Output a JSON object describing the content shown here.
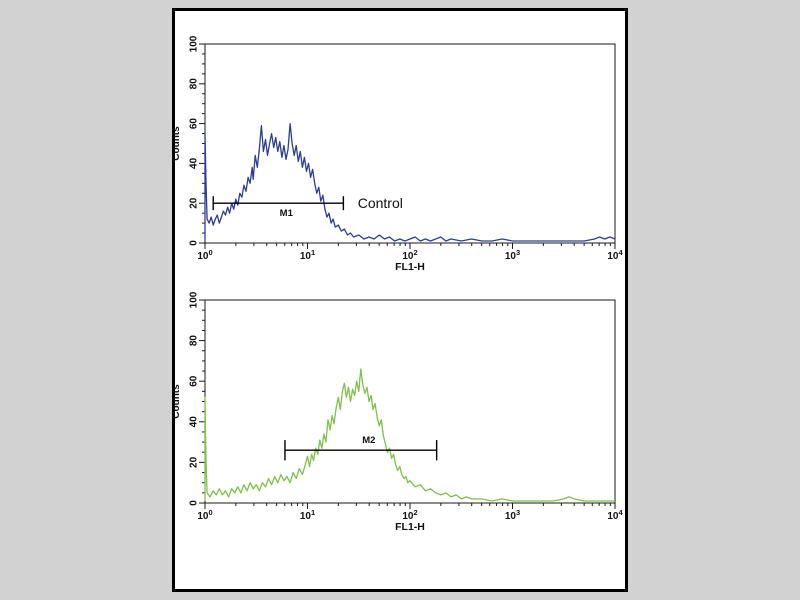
{
  "page": {
    "background_color": "#d2d2d2",
    "figure_background": "#ffffff",
    "figure_border_color": "#000000",
    "frame_color": "#1a1a1a",
    "text_color": "#111111"
  },
  "chart_data": [
    {
      "type": "line",
      "panel": "top",
      "description": "flow-cytometry-histogram-control",
      "xlabel": "FL1-H",
      "ylabel": "Counts",
      "x_scale": "log10",
      "x_range_exponents": [
        0,
        4
      ],
      "x_major_tick_exponents": [
        0,
        1,
        2,
        3,
        4
      ],
      "ylim": [
        0,
        100
      ],
      "y_major_ticks": [
        0,
        20,
        40,
        60,
        80,
        100
      ],
      "y_minor_step": 5,
      "grid": "off",
      "color": "#2b3e94",
      "marker": {
        "label": "M1",
        "log_from": 0.08,
        "log_to": 1.35,
        "count": 20,
        "cap_half_counts": 3.5,
        "label_side": "below"
      },
      "annotation": {
        "text": "Control",
        "log_x": 1.49,
        "count": 20
      },
      "points": [
        [
          0.0,
          2
        ],
        [
          0.0,
          55
        ],
        [
          0.01,
          30
        ],
        [
          0.02,
          12
        ],
        [
          0.04,
          10
        ],
        [
          0.06,
          13
        ],
        [
          0.08,
          9
        ],
        [
          0.1,
          12
        ],
        [
          0.12,
          14
        ],
        [
          0.14,
          10
        ],
        [
          0.16,
          13
        ],
        [
          0.18,
          16
        ],
        [
          0.2,
          14
        ],
        [
          0.22,
          18
        ],
        [
          0.24,
          15
        ],
        [
          0.26,
          20
        ],
        [
          0.28,
          17
        ],
        [
          0.3,
          22
        ],
        [
          0.32,
          19
        ],
        [
          0.34,
          25
        ],
        [
          0.36,
          23
        ],
        [
          0.38,
          29
        ],
        [
          0.4,
          26
        ],
        [
          0.42,
          33
        ],
        [
          0.44,
          30
        ],
        [
          0.46,
          38
        ],
        [
          0.47,
          32
        ],
        [
          0.49,
          44
        ],
        [
          0.51,
          38
        ],
        [
          0.53,
          47
        ],
        [
          0.55,
          59
        ],
        [
          0.57,
          46
        ],
        [
          0.59,
          52
        ],
        [
          0.61,
          44
        ],
        [
          0.63,
          50
        ],
        [
          0.65,
          55
        ],
        [
          0.67,
          48
        ],
        [
          0.69,
          53
        ],
        [
          0.71,
          46
        ],
        [
          0.73,
          51
        ],
        [
          0.75,
          43
        ],
        [
          0.77,
          49
        ],
        [
          0.79,
          42
        ],
        [
          0.81,
          47
        ],
        [
          0.83,
          60
        ],
        [
          0.85,
          50
        ],
        [
          0.87,
          44
        ],
        [
          0.89,
          49
        ],
        [
          0.91,
          41
        ],
        [
          0.93,
          46
        ],
        [
          0.95,
          38
        ],
        [
          0.97,
          43
        ],
        [
          0.99,
          36
        ],
        [
          1.01,
          40
        ],
        [
          1.03,
          33
        ],
        [
          1.05,
          37
        ],
        [
          1.07,
          30
        ],
        [
          1.09,
          25
        ],
        [
          1.11,
          28
        ],
        [
          1.13,
          21
        ],
        [
          1.15,
          24
        ],
        [
          1.17,
          17
        ],
        [
          1.19,
          13
        ],
        [
          1.21,
          15
        ],
        [
          1.23,
          10
        ],
        [
          1.25,
          12
        ],
        [
          1.27,
          8
        ],
        [
          1.3,
          9
        ],
        [
          1.33,
          6
        ],
        [
          1.36,
          7
        ],
        [
          1.39,
          4
        ],
        [
          1.42,
          5
        ],
        [
          1.45,
          3
        ],
        [
          1.5,
          4
        ],
        [
          1.55,
          2
        ],
        [
          1.6,
          3
        ],
        [
          1.65,
          2
        ],
        [
          1.7,
          4
        ],
        [
          1.75,
          2
        ],
        [
          1.8,
          3
        ],
        [
          1.85,
          1
        ],
        [
          1.9,
          2
        ],
        [
          1.95,
          1
        ],
        [
          2.0,
          2
        ],
        [
          2.05,
          3
        ],
        [
          2.1,
          1
        ],
        [
          2.15,
          2
        ],
        [
          2.2,
          1
        ],
        [
          2.25,
          2
        ],
        [
          2.3,
          3
        ],
        [
          2.35,
          1
        ],
        [
          2.4,
          2
        ],
        [
          2.5,
          1
        ],
        [
          2.6,
          2
        ],
        [
          2.7,
          1
        ],
        [
          2.8,
          1
        ],
        [
          2.9,
          2
        ],
        [
          3.0,
          1
        ],
        [
          3.1,
          1
        ],
        [
          3.2,
          1
        ],
        [
          3.3,
          1
        ],
        [
          3.4,
          1
        ],
        [
          3.5,
          1
        ],
        [
          3.6,
          1
        ],
        [
          3.7,
          1
        ],
        [
          3.8,
          2
        ],
        [
          3.85,
          3
        ],
        [
          3.9,
          2
        ],
        [
          3.95,
          3
        ],
        [
          4.0,
          2
        ]
      ]
    },
    {
      "type": "line",
      "panel": "bottom",
      "description": "flow-cytometry-histogram-antibody",
      "xlabel": "FL1-H",
      "ylabel": "Counts",
      "x_scale": "log10",
      "x_range_exponents": [
        0,
        4
      ],
      "x_major_tick_exponents": [
        0,
        1,
        2,
        3,
        4
      ],
      "ylim": [
        0,
        100
      ],
      "y_major_ticks": [
        0,
        20,
        40,
        60,
        80,
        100
      ],
      "y_minor_step": 5,
      "grid": "off",
      "color": "#7cc24a",
      "marker": {
        "label": "M2",
        "log_from": 0.78,
        "log_to": 2.26,
        "count": 26,
        "cap_half_counts": 5,
        "label_side": "above"
      },
      "annotation": null,
      "points": [
        [
          0.0,
          1
        ],
        [
          0.0,
          52
        ],
        [
          0.01,
          20
        ],
        [
          0.02,
          5
        ],
        [
          0.05,
          3
        ],
        [
          0.08,
          6
        ],
        [
          0.11,
          4
        ],
        [
          0.14,
          7
        ],
        [
          0.17,
          4
        ],
        [
          0.2,
          6
        ],
        [
          0.23,
          3
        ],
        [
          0.26,
          7
        ],
        [
          0.29,
          5
        ],
        [
          0.32,
          8
        ],
        [
          0.35,
          5
        ],
        [
          0.38,
          9
        ],
        [
          0.41,
          6
        ],
        [
          0.44,
          10
        ],
        [
          0.47,
          7
        ],
        [
          0.5,
          9
        ],
        [
          0.53,
          6
        ],
        [
          0.56,
          10
        ],
        [
          0.59,
          8
        ],
        [
          0.62,
          12
        ],
        [
          0.65,
          9
        ],
        [
          0.68,
          13
        ],
        [
          0.71,
          10
        ],
        [
          0.74,
          14
        ],
        [
          0.77,
          11
        ],
        [
          0.8,
          13
        ],
        [
          0.83,
          10
        ],
        [
          0.86,
          15
        ],
        [
          0.89,
          12
        ],
        [
          0.92,
          17
        ],
        [
          0.95,
          14
        ],
        [
          0.98,
          19
        ],
        [
          1.0,
          23
        ],
        [
          1.02,
          18
        ],
        [
          1.04,
          24
        ],
        [
          1.06,
          21
        ],
        [
          1.08,
          27
        ],
        [
          1.1,
          24
        ],
        [
          1.12,
          31
        ],
        [
          1.14,
          27
        ],
        [
          1.16,
          34
        ],
        [
          1.18,
          30
        ],
        [
          1.2,
          41
        ],
        [
          1.22,
          36
        ],
        [
          1.24,
          43
        ],
        [
          1.26,
          39
        ],
        [
          1.28,
          47
        ],
        [
          1.3,
          52
        ],
        [
          1.32,
          46
        ],
        [
          1.34,
          55
        ],
        [
          1.36,
          59
        ],
        [
          1.38,
          52
        ],
        [
          1.4,
          57
        ],
        [
          1.42,
          50
        ],
        [
          1.44,
          56
        ],
        [
          1.46,
          53
        ],
        [
          1.48,
          60
        ],
        [
          1.5,
          55
        ],
        [
          1.52,
          66
        ],
        [
          1.54,
          58
        ],
        [
          1.56,
          54
        ],
        [
          1.58,
          57
        ],
        [
          1.6,
          50
        ],
        [
          1.62,
          53
        ],
        [
          1.64,
          46
        ],
        [
          1.66,
          49
        ],
        [
          1.68,
          42
        ],
        [
          1.7,
          38
        ],
        [
          1.72,
          41
        ],
        [
          1.74,
          33
        ],
        [
          1.76,
          29
        ],
        [
          1.78,
          25
        ],
        [
          1.8,
          27
        ],
        [
          1.82,
          22
        ],
        [
          1.84,
          24
        ],
        [
          1.86,
          19
        ],
        [
          1.88,
          16
        ],
        [
          1.9,
          18
        ],
        [
          1.92,
          14
        ],
        [
          1.94,
          12
        ],
        [
          1.96,
          13
        ],
        [
          1.98,
          10
        ],
        [
          2.0,
          11
        ],
        [
          2.05,
          8
        ],
        [
          2.1,
          9
        ],
        [
          2.15,
          6
        ],
        [
          2.2,
          7
        ],
        [
          2.25,
          5
        ],
        [
          2.3,
          4
        ],
        [
          2.35,
          5
        ],
        [
          2.4,
          3
        ],
        [
          2.45,
          4
        ],
        [
          2.5,
          2
        ],
        [
          2.55,
          3
        ],
        [
          2.6,
          2
        ],
        [
          2.7,
          2
        ],
        [
          2.8,
          1
        ],
        [
          2.9,
          2
        ],
        [
          3.0,
          1
        ],
        [
          3.1,
          1
        ],
        [
          3.2,
          1
        ],
        [
          3.3,
          1
        ],
        [
          3.4,
          1
        ],
        [
          3.5,
          2
        ],
        [
          3.55,
          3
        ],
        [
          3.6,
          2
        ],
        [
          3.7,
          1
        ],
        [
          3.8,
          1
        ],
        [
          3.9,
          1
        ],
        [
          4.0,
          1
        ]
      ]
    }
  ]
}
